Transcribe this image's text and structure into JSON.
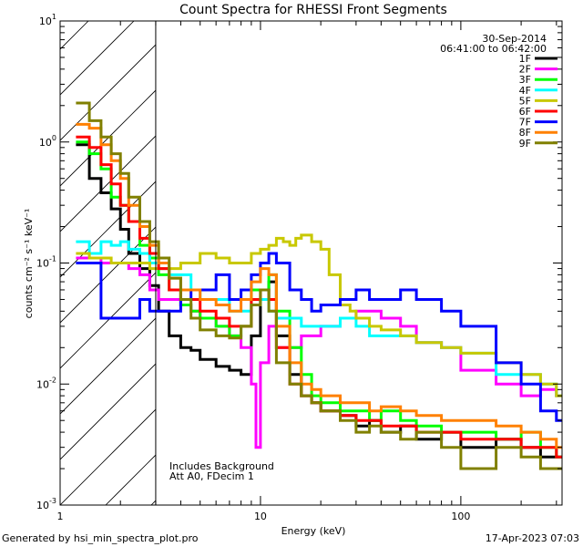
{
  "chart_data": {
    "type": "line",
    "title": "Count Spectra for RHESSI Front Segments",
    "xlabel": "Energy (keV)",
    "ylabel": "counts cm⁻² s⁻¹ keV⁻¹",
    "xscale": "log",
    "yscale": "log",
    "xlim": [
      1,
      320
    ],
    "ylim": [
      0.001,
      10
    ],
    "x_ticks": [
      {
        "value": 1,
        "label": "1"
      },
      {
        "value": 10,
        "label": "10"
      },
      {
        "value": 100,
        "label": "100"
      }
    ],
    "y_ticks": [
      {
        "value": 10,
        "base": "10",
        "exp": "1"
      },
      {
        "value": 1,
        "base": "10",
        "exp": "0"
      },
      {
        "value": 0.1,
        "base": "10",
        "exp": "-1"
      },
      {
        "value": 0.01,
        "base": "10",
        "exp": "-2"
      },
      {
        "value": 0.001,
        "base": "10",
        "exp": "-3"
      }
    ],
    "date": "30-Sep-2014",
    "time_range": "06:41:00 to 06:42:00",
    "hatched_region": {
      "x_min": 1,
      "x_max": 3
    },
    "annotation_lines": [
      "Includes Background",
      "Att A0, FDecim 1"
    ],
    "series": [
      {
        "name": "1F",
        "color": "#000000",
        "x": [
          1.2,
          1.4,
          1.6,
          1.8,
          2.0,
          2.2,
          2.5,
          2.8,
          3.1,
          3.5,
          4.0,
          4.5,
          5.0,
          6.0,
          7.0,
          8.0,
          9.0,
          10.0,
          11.0,
          12.0,
          14.0,
          16.0,
          18.0,
          20.0,
          25.0,
          30.0,
          35.0,
          40.0,
          50.0,
          60.0,
          80.0,
          100.0,
          150.0,
          200.0,
          250.0,
          300.0
        ],
        "values": [
          0.95,
          0.5,
          0.38,
          0.28,
          0.19,
          0.12,
          0.09,
          0.065,
          0.04,
          0.025,
          0.02,
          0.019,
          0.016,
          0.014,
          0.013,
          0.012,
          0.025,
          0.05,
          0.07,
          0.025,
          0.012,
          0.008,
          0.007,
          0.006,
          0.0055,
          0.0045,
          0.005,
          0.004,
          0.0045,
          0.0035,
          0.004,
          0.003,
          0.0035,
          0.003,
          0.0025,
          0.0025
        ]
      },
      {
        "name": "2F",
        "color": "#ff00ff",
        "x": [
          1.2,
          1.4,
          1.6,
          1.8,
          2.0,
          2.2,
          2.5,
          2.8,
          3.1,
          3.5,
          4.0,
          4.5,
          5.0,
          6.0,
          7.0,
          8.0,
          9.0,
          9.5,
          10.0,
          11.0,
          12.0,
          14.0,
          16.0,
          18.0,
          20.0,
          25.0,
          30.0,
          35.0,
          40.0,
          50.0,
          60.0,
          80.0,
          100.0,
          150.0,
          200.0,
          250.0,
          300.0
        ],
        "values": [
          0.11,
          0.11,
          0.1,
          0.1,
          0.1,
          0.09,
          0.08,
          0.06,
          0.05,
          0.05,
          0.045,
          0.04,
          0.035,
          0.03,
          0.025,
          0.02,
          0.01,
          0.003,
          0.015,
          0.03,
          0.02,
          0.02,
          0.025,
          0.025,
          0.03,
          0.035,
          0.04,
          0.04,
          0.035,
          0.03,
          0.022,
          0.02,
          0.013,
          0.01,
          0.008,
          0.009,
          0.008
        ]
      },
      {
        "name": "3F",
        "color": "#00ff00",
        "x": [
          1.2,
          1.4,
          1.6,
          1.8,
          2.0,
          2.2,
          2.5,
          2.8,
          3.1,
          3.5,
          4.0,
          4.5,
          5.0,
          6.0,
          7.0,
          8.0,
          9.0,
          10.0,
          11.0,
          12.0,
          14.0,
          16.0,
          18.0,
          20.0,
          25.0,
          30.0,
          35.0,
          40.0,
          50.0,
          60.0,
          80.0,
          100.0,
          150.0,
          200.0,
          250.0,
          300.0
        ],
        "values": [
          1.0,
          0.8,
          0.6,
          0.35,
          0.3,
          0.22,
          0.14,
          0.11,
          0.08,
          0.06,
          0.045,
          0.04,
          0.035,
          0.03,
          0.025,
          0.03,
          0.06,
          0.06,
          0.08,
          0.04,
          0.02,
          0.012,
          0.008,
          0.007,
          0.006,
          0.006,
          0.005,
          0.006,
          0.005,
          0.0045,
          0.004,
          0.004,
          0.0035,
          0.004,
          0.003,
          0.0025
        ]
      },
      {
        "name": "4F",
        "color": "#00ffff",
        "x": [
          1.2,
          1.4,
          1.6,
          1.8,
          2.0,
          2.2,
          2.5,
          2.8,
          3.1,
          3.5,
          4.0,
          4.5,
          5.0,
          6.0,
          7.0,
          8.0,
          9.0,
          10.0,
          11.0,
          12.0,
          14.0,
          16.0,
          18.0,
          20.0,
          25.0,
          30.0,
          35.0,
          40.0,
          50.0,
          60.0,
          80.0,
          100.0,
          150.0,
          200.0,
          250.0,
          300.0
        ],
        "values": [
          0.15,
          0.12,
          0.15,
          0.14,
          0.15,
          0.13,
          0.12,
          0.1,
          0.09,
          0.08,
          0.08,
          0.06,
          0.05,
          0.05,
          0.04,
          0.04,
          0.045,
          0.05,
          0.04,
          0.035,
          0.035,
          0.03,
          0.03,
          0.03,
          0.035,
          0.03,
          0.025,
          0.025,
          0.025,
          0.022,
          0.02,
          0.018,
          0.012,
          0.012,
          0.01,
          0.008
        ]
      },
      {
        "name": "5F",
        "color": "#c8c800",
        "x": [
          1.2,
          1.4,
          1.6,
          1.8,
          2.0,
          2.2,
          2.5,
          2.8,
          3.1,
          3.5,
          4.0,
          4.5,
          5.0,
          6.0,
          7.0,
          8.0,
          9.0,
          10.0,
          11.0,
          12.0,
          13.0,
          14.0,
          15.0,
          16.0,
          18.0,
          20.0,
          22.0,
          25.0,
          28.0,
          30.0,
          35.0,
          40.0,
          50.0,
          60.0,
          80.0,
          100.0,
          150.0,
          200.0,
          250.0,
          300.0
        ],
        "values": [
          0.12,
          0.11,
          0.11,
          0.1,
          0.1,
          0.1,
          0.1,
          0.09,
          0.09,
          0.09,
          0.1,
          0.1,
          0.12,
          0.11,
          0.1,
          0.1,
          0.12,
          0.13,
          0.14,
          0.16,
          0.15,
          0.14,
          0.16,
          0.17,
          0.15,
          0.13,
          0.08,
          0.045,
          0.04,
          0.035,
          0.03,
          0.028,
          0.025,
          0.022,
          0.02,
          0.018,
          0.015,
          0.012,
          0.01,
          0.008
        ]
      },
      {
        "name": "6F",
        "color": "#ff0000",
        "x": [
          1.2,
          1.4,
          1.6,
          1.8,
          2.0,
          2.2,
          2.5,
          2.8,
          3.1,
          3.5,
          4.0,
          4.5,
          5.0,
          6.0,
          7.0,
          8.0,
          9.0,
          10.0,
          11.0,
          12.0,
          14.0,
          16.0,
          18.0,
          20.0,
          25.0,
          30.0,
          35.0,
          40.0,
          50.0,
          60.0,
          80.0,
          100.0,
          150.0,
          200.0,
          250.0,
          300.0
        ],
        "values": [
          1.1,
          0.9,
          0.65,
          0.45,
          0.3,
          0.22,
          0.16,
          0.12,
          0.09,
          0.06,
          0.05,
          0.05,
          0.04,
          0.035,
          0.03,
          0.03,
          0.05,
          0.06,
          0.05,
          0.02,
          0.01,
          0.008,
          0.007,
          0.006,
          0.0055,
          0.005,
          0.005,
          0.0045,
          0.0045,
          0.004,
          0.004,
          0.0035,
          0.0035,
          0.003,
          0.003,
          0.0025
        ]
      },
      {
        "name": "7F",
        "color": "#0000ff",
        "x": [
          1.2,
          1.4,
          1.6,
          1.8,
          2.0,
          2.2,
          2.5,
          2.8,
          3.1,
          3.5,
          4.0,
          4.5,
          5.0,
          6.0,
          7.0,
          8.0,
          9.0,
          10.0,
          11.0,
          12.0,
          14.0,
          16.0,
          18.0,
          20.0,
          25.0,
          30.0,
          35.0,
          40.0,
          50.0,
          60.0,
          80.0,
          100.0,
          150.0,
          200.0,
          250.0,
          300.0
        ],
        "values": [
          0.1,
          0.1,
          0.035,
          0.035,
          0.035,
          0.035,
          0.05,
          0.04,
          0.04,
          0.04,
          0.05,
          0.06,
          0.06,
          0.08,
          0.05,
          0.06,
          0.08,
          0.1,
          0.12,
          0.1,
          0.06,
          0.05,
          0.04,
          0.045,
          0.05,
          0.06,
          0.05,
          0.05,
          0.06,
          0.05,
          0.04,
          0.03,
          0.015,
          0.01,
          0.006,
          0.005
        ]
      },
      {
        "name": "8F",
        "color": "#ff8000",
        "x": [
          1.2,
          1.4,
          1.6,
          1.8,
          2.0,
          2.2,
          2.5,
          2.8,
          3.1,
          3.5,
          4.0,
          4.5,
          5.0,
          6.0,
          7.0,
          8.0,
          9.0,
          10.0,
          11.0,
          12.0,
          14.0,
          16.0,
          18.0,
          20.0,
          25.0,
          30.0,
          35.0,
          40.0,
          50.0,
          60.0,
          80.0,
          100.0,
          150.0,
          200.0,
          250.0,
          300.0
        ],
        "values": [
          1.4,
          1.3,
          0.95,
          0.7,
          0.5,
          0.3,
          0.2,
          0.14,
          0.1,
          0.075,
          0.06,
          0.06,
          0.05,
          0.045,
          0.04,
          0.05,
          0.07,
          0.09,
          0.08,
          0.03,
          0.015,
          0.01,
          0.009,
          0.008,
          0.007,
          0.007,
          0.006,
          0.0065,
          0.006,
          0.0055,
          0.005,
          0.005,
          0.0045,
          0.004,
          0.0035,
          0.003
        ]
      },
      {
        "name": "9F",
        "color": "#808000",
        "x": [
          1.2,
          1.4,
          1.6,
          1.8,
          2.0,
          2.2,
          2.5,
          2.8,
          3.1,
          3.5,
          4.0,
          4.5,
          5.0,
          6.0,
          7.0,
          8.0,
          9.0,
          10.0,
          11.0,
          12.0,
          14.0,
          16.0,
          18.0,
          20.0,
          25.0,
          30.0,
          35.0,
          40.0,
          50.0,
          60.0,
          80.0,
          100.0,
          150.0,
          200.0,
          250.0,
          300.0
        ],
        "values": [
          2.1,
          1.5,
          1.1,
          0.8,
          0.55,
          0.35,
          0.22,
          0.15,
          0.11,
          0.075,
          0.05,
          0.035,
          0.028,
          0.025,
          0.024,
          0.03,
          0.045,
          0.06,
          0.04,
          0.015,
          0.01,
          0.008,
          0.007,
          0.006,
          0.005,
          0.004,
          0.0045,
          0.004,
          0.0035,
          0.004,
          0.003,
          0.002,
          0.003,
          0.0025,
          0.002,
          0.002
        ]
      }
    ]
  },
  "footer": {
    "left": "Generated by hsi_min_spectra_plot.pro",
    "right": "17-Apr-2023 07:03"
  }
}
